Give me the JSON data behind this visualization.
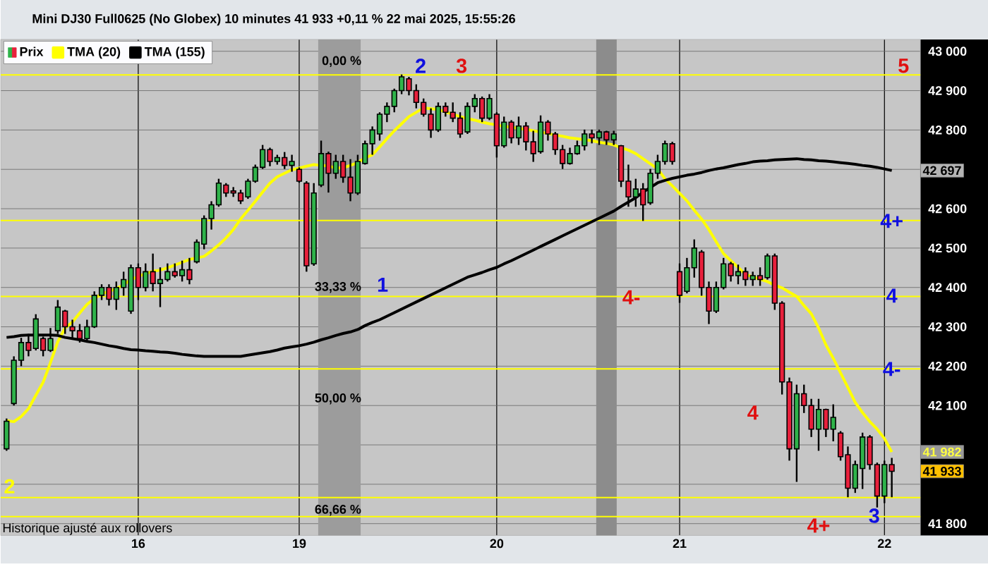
{
  "chart_data": {
    "type": "candlestick",
    "title": "Mini DJ30 Full0625 (No Globex) 10 minutes 41 933 +0,11 % 22 mai 2025, 15:55:26",
    "categories": [
      null,
      null,
      null,
      null,
      null,
      null,
      null,
      null,
      null,
      null,
      null,
      null,
      null,
      null,
      null,
      null,
      null,
      null,
      "16",
      null,
      null,
      null,
      null,
      null,
      null,
      null,
      null,
      null,
      null,
      null,
      null,
      null,
      null,
      null,
      null,
      null,
      null,
      null,
      null,
      null,
      "19",
      null,
      null,
      null,
      null,
      null,
      null,
      null,
      null,
      null,
      null,
      null,
      null,
      null,
      null,
      null,
      null,
      null,
      null,
      null,
      null,
      null,
      null,
      null,
      null,
      null,
      null,
      "20",
      null,
      null,
      null,
      null,
      null,
      null,
      null,
      null,
      null,
      null,
      null,
      null,
      null,
      null,
      null,
      null,
      null,
      null,
      null,
      null,
      null,
      null,
      null,
      null,
      "21",
      null,
      null,
      null,
      null,
      null,
      null,
      null,
      null,
      null,
      null,
      null,
      null,
      null,
      null,
      null,
      null,
      null,
      null,
      null,
      null,
      null,
      null,
      null,
      null,
      null,
      null,
      null,
      "22",
      null
    ],
    "ylim": [
      41770,
      43030
    ],
    "yticks": [
      {
        "value": 41800,
        "label": "41 800"
      },
      {
        "value": 41900,
        "label": null
      },
      {
        "value": 42000,
        "label": null
      },
      {
        "value": 42100,
        "label": "42 100"
      },
      {
        "value": 42200,
        "label": "42 200"
      },
      {
        "value": 42300,
        "label": "42 300"
      },
      {
        "value": 42400,
        "label": "42 400"
      },
      {
        "value": 42500,
        "label": "42 500"
      },
      {
        "value": 42600,
        "label": "42 600"
      },
      {
        "value": 42700,
        "label": null
      },
      {
        "value": 42800,
        "label": "42 800"
      },
      {
        "value": 42900,
        "label": "42 900"
      },
      {
        "value": 43000,
        "label": "43 000"
      }
    ],
    "grid": true,
    "legend": "top left",
    "series": [
      {
        "name": "Prix",
        "color": "#000000",
        "ohlc": [
          [
            41990,
            42067,
            41985,
            42060
          ],
          [
            42105,
            42225,
            42100,
            42215
          ],
          [
            42215,
            42272,
            42200,
            42260
          ],
          [
            42260,
            42282,
            42225,
            42240
          ],
          [
            42245,
            42332,
            42240,
            42320
          ],
          [
            42270,
            42275,
            42225,
            42240
          ],
          [
            42240,
            42297,
            42236,
            42270
          ],
          [
            42290,
            42368,
            42282,
            42350
          ],
          [
            42340,
            42343,
            42282,
            42300
          ],
          [
            42300,
            42318,
            42272,
            42290
          ],
          [
            42290,
            42307,
            42260,
            42270
          ],
          [
            42270,
            42318,
            42260,
            42300
          ],
          [
            42300,
            42390,
            42297,
            42380
          ],
          [
            42380,
            42408,
            42368,
            42400
          ],
          [
            42400,
            42408,
            42354,
            42370
          ],
          [
            42370,
            42415,
            42343,
            42400
          ],
          [
            42400,
            42440,
            42379,
            42420
          ],
          [
            42340,
            42458,
            42333,
            42450
          ],
          [
            42450,
            42461,
            42368,
            42400
          ],
          [
            42400,
            42461,
            42390,
            42440
          ],
          [
            42440,
            42486,
            42390,
            42410
          ],
          [
            42410,
            42451,
            42350,
            42420
          ],
          [
            42420,
            42461,
            42415,
            42440
          ],
          [
            42440,
            42461,
            42425,
            42430
          ],
          [
            42430,
            42468,
            42415,
            42445
          ],
          [
            42445,
            42475,
            42408,
            42420
          ],
          [
            42465,
            42522,
            42461,
            42515
          ],
          [
            42510,
            42583,
            42497,
            42575
          ],
          [
            42575,
            42619,
            42547,
            42610
          ],
          [
            42610,
            42676,
            42605,
            42665
          ],
          [
            42660,
            42665,
            42630,
            42640
          ],
          [
            42645,
            42655,
            42630,
            42640
          ],
          [
            42640,
            42648,
            42612,
            42620
          ],
          [
            42630,
            42676,
            42625,
            42670
          ],
          [
            42670,
            42712,
            42666,
            42705
          ],
          [
            42705,
            42762,
            42701,
            42750
          ],
          [
            42750,
            42755,
            42708,
            42720
          ],
          [
            42720,
            42737,
            42712,
            42730
          ],
          [
            42730,
            42744,
            42701,
            42710
          ],
          [
            42710,
            42737,
            42694,
            42720
          ],
          [
            42700,
            42705,
            42666,
            42670
          ],
          [
            42665,
            42670,
            42440,
            42455
          ],
          [
            42460,
            42665,
            42455,
            42640
          ],
          [
            42660,
            42773,
            42655,
            42740
          ],
          [
            42740,
            42745,
            42641,
            42690
          ],
          [
            42690,
            42737,
            42676,
            42720
          ],
          [
            42720,
            42737,
            42666,
            42680
          ],
          [
            42680,
            42726,
            42619,
            42640
          ],
          [
            42640,
            42737,
            42635,
            42720
          ],
          [
            42715,
            42773,
            42712,
            42765
          ],
          [
            42765,
            42809,
            42737,
            42800
          ],
          [
            42790,
            42845,
            42773,
            42840
          ],
          [
            42840,
            42870,
            42820,
            42860
          ],
          [
            42860,
            42905,
            42845,
            42900
          ],
          [
            42900,
            42941,
            42891,
            42935
          ],
          [
            42930,
            42935,
            42888,
            42900
          ],
          [
            42900,
            42916,
            42855,
            42870
          ],
          [
            42870,
            42880,
            42834,
            42840
          ],
          [
            42840,
            42855,
            42780,
            42800
          ],
          [
            42800,
            42870,
            42795,
            42860
          ],
          [
            42860,
            42870,
            42834,
            42845
          ],
          [
            42845,
            42870,
            42820,
            42830
          ],
          [
            42830,
            42845,
            42780,
            42790
          ],
          [
            42795,
            42870,
            42790,
            42860
          ],
          [
            42860,
            42891,
            42845,
            42880
          ],
          [
            42880,
            42885,
            42820,
            42830
          ],
          [
            42830,
            42891,
            42825,
            42880
          ],
          [
            42840,
            42845,
            42730,
            42760
          ],
          [
            42760,
            42834,
            42755,
            42820
          ],
          [
            42820,
            42825,
            42766,
            42780
          ],
          [
            42780,
            42834,
            42762,
            42810
          ],
          [
            42810,
            42820,
            42748,
            42770
          ],
          [
            42770,
            42798,
            42719,
            42740
          ],
          [
            42745,
            42837,
            42740,
            42820
          ],
          [
            42820,
            42825,
            42773,
            42790
          ],
          [
            42790,
            42795,
            42737,
            42750
          ],
          [
            42750,
            42762,
            42701,
            42715
          ],
          [
            42715,
            42755,
            42712,
            42740
          ],
          [
            42740,
            42773,
            42737,
            42760
          ],
          [
            42760,
            42801,
            42748,
            42790
          ],
          [
            42790,
            42801,
            42766,
            42780
          ],
          [
            42780,
            42801,
            42762,
            42795
          ],
          [
            42795,
            42798,
            42762,
            42775
          ],
          [
            42775,
            42798,
            42762,
            42790
          ],
          [
            42760,
            42762,
            42655,
            42670
          ],
          [
            42670,
            42712,
            42605,
            42630
          ],
          [
            42630,
            42676,
            42605,
            42650
          ],
          [
            42650,
            42665,
            42569,
            42610
          ],
          [
            42615,
            42701,
            42610,
            42690
          ],
          [
            42690,
            42737,
            42676,
            42720
          ],
          [
            42720,
            42773,
            42712,
            42765
          ],
          [
            42765,
            42770,
            42712,
            42720
          ],
          [
            42440,
            42461,
            42361,
            42380
          ],
          [
            42390,
            42475,
            42385,
            42450
          ],
          [
            42450,
            42522,
            42425,
            42500
          ],
          [
            42490,
            42495,
            42379,
            42400
          ],
          [
            42400,
            42415,
            42307,
            42340
          ],
          [
            42340,
            42415,
            42335,
            42400
          ],
          [
            42400,
            42475,
            42395,
            42460
          ],
          [
            42460,
            42465,
            42415,
            42430
          ],
          [
            42430,
            42458,
            42408,
            42440
          ],
          [
            42440,
            42451,
            42404,
            42420
          ],
          [
            42420,
            42440,
            42404,
            42430
          ],
          [
            42430,
            42451,
            42404,
            42420
          ],
          [
            42425,
            42486,
            42420,
            42480
          ],
          [
            42480,
            42486,
            42343,
            42360
          ],
          [
            42360,
            42365,
            42128,
            42160
          ],
          [
            42160,
            42171,
            41960,
            41990
          ],
          [
            41990,
            42153,
            41906,
            42130
          ],
          [
            42130,
            42153,
            42081,
            42100
          ],
          [
            42100,
            42117,
            42020,
            42040
          ],
          [
            42040,
            42117,
            41985,
            42090
          ],
          [
            42090,
            42092,
            42020,
            42040
          ],
          [
            42040,
            42103,
            42009,
            42070
          ],
          [
            42030,
            42035,
            41960,
            41970
          ],
          [
            41975,
            41996,
            41867,
            41890
          ],
          [
            41890,
            41960,
            41878,
            41950
          ],
          [
            41940,
            42031,
            41888,
            42020
          ],
          [
            42020,
            42025,
            41937,
            41950
          ],
          [
            41950,
            41955,
            41841,
            41870
          ],
          [
            41870,
            41960,
            41852,
            41950
          ],
          [
            41950,
            41967,
            41867,
            41933
          ]
        ]
      },
      {
        "name": "TMA (20)",
        "type": "line",
        "color": "#ffff00",
        "values": [
          42062,
          42059,
          42072,
          42092,
          42126,
          42159,
          42209,
          42262,
          42297,
          42312,
          42335,
          42357,
          42372,
          42383,
          42390,
          42397,
          42407,
          42420,
          42428,
          42435,
          42441,
          42444,
          42450,
          42457,
          42464,
          42471,
          42475,
          42479,
          42493,
          42508,
          42526,
          42547,
          42574,
          42596,
          42619,
          42642,
          42665,
          42681,
          42690,
          42699,
          42703,
          42708,
          42712,
          42710,
          42709,
          42703,
          42704,
          42710,
          42717,
          42729,
          42737,
          42757,
          42778,
          42798,
          42816,
          42834,
          42845,
          42856,
          42854,
          42852,
          42846,
          42840,
          42834,
          42829,
          42825,
          42820,
          42816,
          42813,
          42809,
          42807,
          42804,
          42802,
          42798,
          42795,
          42791,
          42787,
          42784,
          42780,
          42778,
          42775,
          42773,
          42769,
          42766,
          42762,
          42755,
          42749,
          42740,
          42727,
          42714,
          42701,
          42676,
          42658,
          42639,
          42620,
          42596,
          42574,
          42547,
          42516,
          42486,
          42468,
          42451,
          42433,
          42427,
          42421,
          42415,
          42406,
          42399,
          42388,
          42377,
          42354,
          42333,
          42297,
          42254,
          42220,
          42183,
          42146,
          42108,
          42082,
          42059,
          42040,
          42016,
          41982
        ]
      },
      {
        "name": "TMA (155)",
        "type": "line",
        "color": "#000000",
        "values": [
          42273,
          42275,
          42278,
          42279,
          42279,
          42279,
          42279,
          42278,
          42273,
          42270,
          42267,
          42263,
          42260,
          42256,
          42252,
          42249,
          42245,
          42242,
          42241,
          42239,
          42238,
          42236,
          42235,
          42233,
          42230,
          42228,
          42226,
          42225,
          42225,
          42225,
          42225,
          42225,
          42225,
          42228,
          42231,
          42234,
          42237,
          42241,
          42246,
          42249,
          42252,
          42256,
          42261,
          42267,
          42272,
          42278,
          42283,
          42287,
          42293,
          42303,
          42311,
          42318,
          42327,
          42336,
          42345,
          42354,
          42363,
          42372,
          42381,
          42390,
          42399,
          42408,
          42417,
          42426,
          42432,
          42438,
          42445,
          42451,
          42460,
          42468,
          42477,
          42486,
          42495,
          42504,
          42513,
          42522,
          42531,
          42540,
          42549,
          42558,
          42567,
          42576,
          42585,
          42594,
          42606,
          42617,
          42628,
          42642,
          42654,
          42666,
          42672,
          42677,
          42681,
          42685,
          42688,
          42692,
          42697,
          42701,
          42704,
          42708,
          42712,
          42715,
          42719,
          42721,
          42722,
          42724,
          42725,
          42726,
          42727,
          42725,
          42724,
          42722,
          42721,
          42719,
          42717,
          42715,
          42713,
          42710,
          42708,
          42705,
          42701,
          42697
        ]
      }
    ],
    "ref_lines": [
      {
        "axis": "y",
        "value": 42940,
        "color": "#ffff00"
      },
      {
        "axis": "y",
        "value": 42570,
        "color": "#ffff00"
      },
      {
        "axis": "y",
        "value": 42377,
        "color": "#ffff00"
      },
      {
        "axis": "y",
        "value": 42193,
        "color": "#ffff00"
      },
      {
        "axis": "y",
        "value": 41866,
        "color": "#ffff00"
      },
      {
        "axis": "y",
        "value": 41818,
        "color": "#ffff00"
      }
    ],
    "annotations": [
      "0,00 %",
      "33,33 %",
      "50,00 %",
      "66,66 %",
      "2",
      "1",
      "2",
      "3",
      "4-",
      "5",
      "4+",
      "4",
      "4-",
      "4",
      "4+",
      "3",
      "42 697",
      "41 982",
      "41 933",
      "Historique ajusté aux rollovers"
    ]
  }
}
